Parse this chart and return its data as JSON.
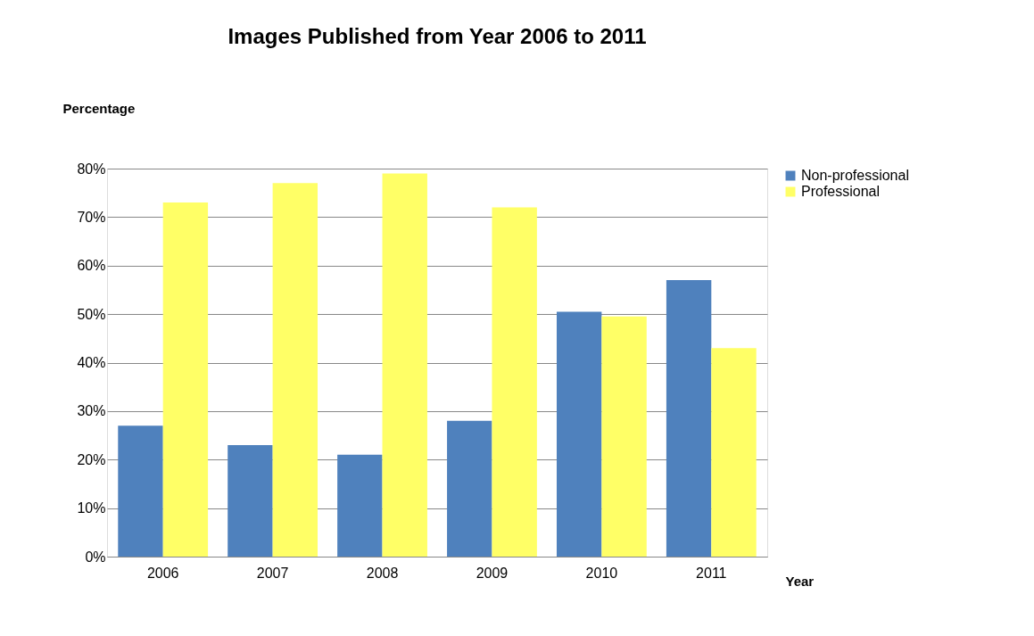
{
  "chart_data": {
    "type": "bar",
    "title": "Images Published from Year 2006 to 2011",
    "xlabel": "Year",
    "ylabel": "Percentage",
    "categories": [
      "2006",
      "2007",
      "2008",
      "2009",
      "2010",
      "2011"
    ],
    "series": [
      {
        "name": "Non-professional",
        "color": "#4f81bd",
        "values": [
          27,
          23,
          21,
          28,
          50.5,
          57
        ]
      },
      {
        "name": "Professional",
        "color": "#ffff66",
        "values": [
          73,
          77,
          79,
          72,
          49.5,
          43
        ]
      }
    ],
    "ylim": [
      0,
      80
    ],
    "yticks": [
      {
        "value": 0,
        "label": "0%"
      },
      {
        "value": 10,
        "label": "10%"
      },
      {
        "value": 20,
        "label": "20%"
      },
      {
        "value": 30,
        "label": "30%"
      },
      {
        "value": 40,
        "label": "40%"
      },
      {
        "value": 50,
        "label": "50%"
      },
      {
        "value": 60,
        "label": "60%"
      },
      {
        "value": 70,
        "label": "70%"
      },
      {
        "value": 80,
        "label": "80%"
      }
    ],
    "grid": "y",
    "legend": "right"
  }
}
